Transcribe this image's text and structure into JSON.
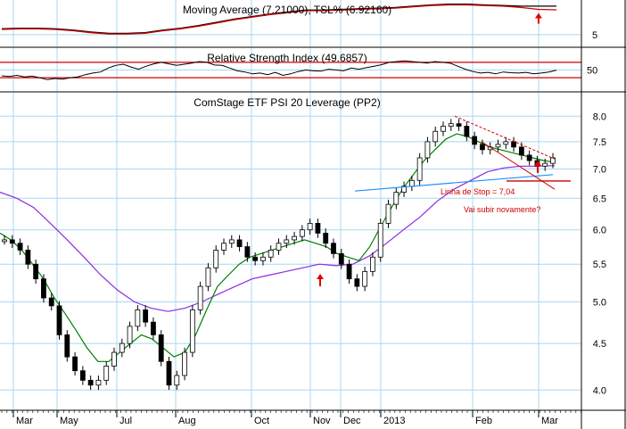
{
  "chart_data": [
    {
      "type": "line",
      "title": "Moving Average (7.21000), TSL% (6.92160)",
      "ylim": [
        4.3,
        7.4
      ],
      "yticks": [
        {
          "value": 5,
          "label": "5"
        }
      ],
      "series": [
        {
          "color": "#000000",
          "values": [
            5.45,
            5.5,
            5.5,
            5.45,
            5.35,
            5.2,
            5.1,
            5.1,
            5.15,
            5.35,
            5.5,
            5.7,
            5.95,
            6.2,
            6.4,
            6.6,
            6.75,
            6.9,
            6.9,
            6.95,
            7.0,
            7.05,
            7.1,
            7.2,
            7.3,
            7.35,
            7.35,
            7.3,
            7.25,
            7.2,
            7.2,
            7.2
          ]
        },
        {
          "color": "#d00000",
          "values": [
            5.4,
            5.45,
            5.45,
            5.4,
            5.3,
            5.15,
            5.05,
            5.05,
            5.1,
            5.3,
            5.45,
            5.65,
            5.9,
            6.15,
            6.35,
            6.55,
            6.7,
            6.85,
            6.85,
            6.9,
            6.95,
            7.0,
            7.05,
            7.15,
            7.25,
            7.3,
            7.3,
            7.25,
            7.2,
            7.1,
            6.95,
            6.92
          ]
        }
      ],
      "arrow_at_index": 30
    },
    {
      "type": "line",
      "title": "Relative Strength Index (49.6857)",
      "ylim": [
        0,
        100
      ],
      "yticks": [
        {
          "value": 50,
          "label": "50"
        }
      ],
      "reference_lines": [
        70,
        30
      ],
      "series": [
        {
          "color": "#000000",
          "values": [
            35,
            33,
            36,
            32,
            34,
            30,
            25,
            28,
            26,
            30,
            32,
            38,
            42,
            45,
            55,
            62,
            65,
            58,
            52,
            60,
            66,
            70,
            66,
            62,
            65,
            68,
            72,
            70,
            63,
            62,
            55,
            48,
            45,
            40,
            42,
            38,
            44,
            36,
            40,
            46,
            50,
            48,
            47,
            52,
            50,
            48,
            55,
            52,
            56,
            60,
            64,
            70,
            72,
            74,
            72,
            70,
            68,
            72,
            70,
            68,
            60,
            52,
            46,
            42,
            44,
            40,
            45,
            43,
            42,
            44,
            40,
            42,
            45,
            49.7
          ]
        }
      ]
    },
    {
      "type": "line",
      "title": "ComStage ETF PSI 20 Leverage (PP2)",
      "ylim": [
        3.8,
        8.3
      ],
      "y_scale": "log",
      "yticks": [
        {
          "value": 8.0,
          "label": "8.0"
        },
        {
          "value": 7.5,
          "label": "7.5"
        },
        {
          "value": 7.0,
          "label": "7.0"
        },
        {
          "value": 6.5,
          "label": "6.5"
        },
        {
          "value": 6.0,
          "label": "6.0"
        },
        {
          "value": 5.5,
          "label": "5.5"
        },
        {
          "value": 5.0,
          "label": "5.0"
        },
        {
          "value": 4.5,
          "label": "4.5"
        },
        {
          "value": 4.0,
          "label": "4.0"
        }
      ],
      "x_ticks": [
        "Mar",
        "May",
        "Jul",
        "Aug",
        "Oct",
        "Nov",
        "Dec",
        "2013",
        "Feb",
        "Mar"
      ],
      "price": [
        5.85,
        5.8,
        5.7,
        5.5,
        5.3,
        5.05,
        4.95,
        4.6,
        4.35,
        4.2,
        4.1,
        4.05,
        4.1,
        4.25,
        4.4,
        4.5,
        4.7,
        4.9,
        4.75,
        4.6,
        4.3,
        4.05,
        4.15,
        4.4,
        4.9,
        5.2,
        5.45,
        5.7,
        5.8,
        5.85,
        5.75,
        5.6,
        5.55,
        5.6,
        5.7,
        5.8,
        5.85,
        5.9,
        6.0,
        6.1,
        5.95,
        5.8,
        5.65,
        5.5,
        5.3,
        5.2,
        5.4,
        5.6,
        6.1,
        6.4,
        6.6,
        6.7,
        6.8,
        7.2,
        7.5,
        7.7,
        7.8,
        7.85,
        7.8,
        7.6,
        7.45,
        7.35,
        7.4,
        7.45,
        7.5,
        7.4,
        7.25,
        7.15,
        7.05,
        7.1,
        7.2
      ],
      "sma_short": [
        5.95,
        5.85,
        5.7,
        5.5,
        5.3,
        5.05,
        4.85,
        4.65,
        4.45,
        4.3,
        4.3,
        4.4,
        4.5,
        4.6,
        4.55,
        4.45,
        4.35,
        4.4,
        4.6,
        4.9,
        5.2,
        5.35,
        5.5,
        5.6,
        5.65,
        5.7,
        5.75,
        5.8,
        5.85,
        5.8,
        5.75,
        5.65,
        5.6,
        5.55,
        5.75,
        6.05,
        6.35,
        6.65,
        6.9,
        7.15,
        7.35,
        7.55,
        7.65,
        7.6,
        7.5,
        7.4,
        7.35,
        7.3,
        7.25,
        7.2,
        7.15,
        7.12
      ],
      "sma_long": [
        6.6,
        6.5,
        6.35,
        6.1,
        5.85,
        5.6,
        5.35,
        5.15,
        5.0,
        4.92,
        4.88,
        4.92,
        5.0,
        5.1,
        5.2,
        5.3,
        5.35,
        5.4,
        5.45,
        5.5,
        5.48,
        5.5,
        5.62,
        5.8,
        6.0,
        6.2,
        6.45,
        6.65,
        6.8,
        6.95,
        7.02,
        7.05,
        7.05,
        7.06
      ],
      "annotations": [
        {
          "text": "Linha de Stop = 7,04",
          "color": "#cc0000"
        },
        {
          "text": "Vai subir novamente?",
          "color": "#cc0000"
        }
      ]
    }
  ]
}
